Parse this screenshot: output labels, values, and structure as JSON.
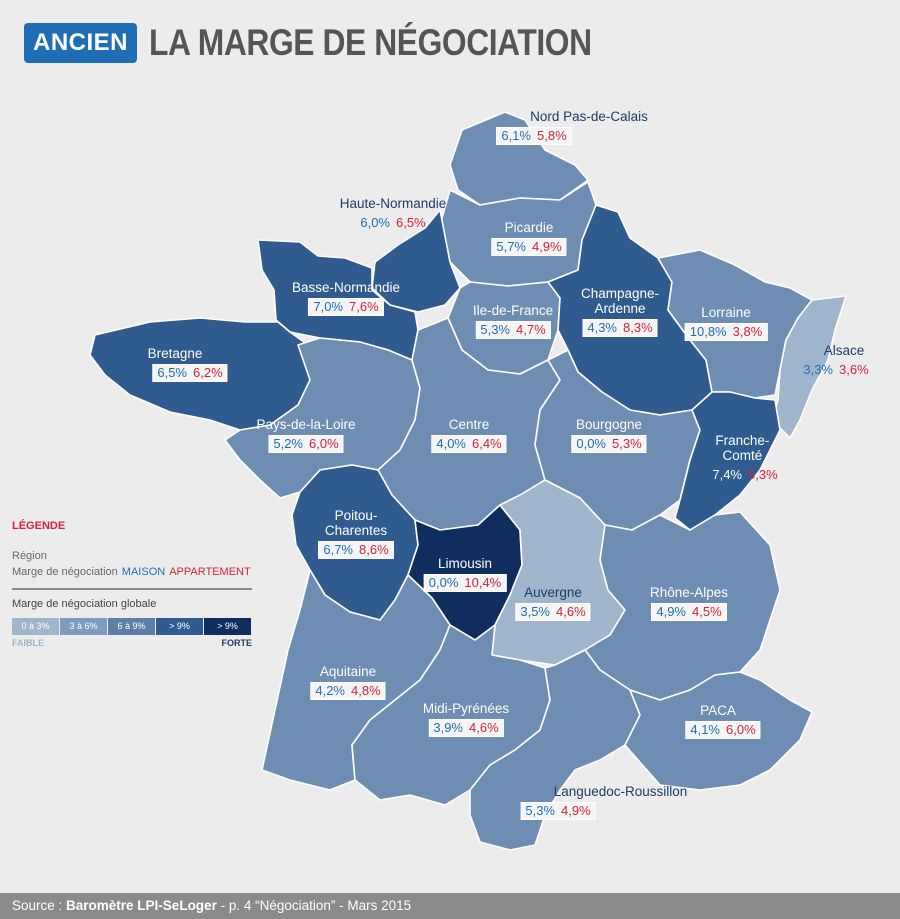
{
  "header": {
    "badge": "ANCIEN",
    "title": "LA MARGE DE NÉGOCIATION"
  },
  "colors": {
    "c1": "#9fb5cc",
    "c2": "#6d8db3",
    "c3": "#5c7fa8",
    "c4": "#2f5b8e",
    "c5": "#0f2e5e",
    "maison": "#1f6db5",
    "appartement": "#d2233c"
  },
  "regions": [
    {
      "name": "Nord Pas-de-Calais",
      "maison": "6,1%",
      "appart": "5,8%"
    },
    {
      "name": "Haute-Normandie",
      "maison": "6,0%",
      "appart": "6,5%"
    },
    {
      "name": "Picardie",
      "maison": "5,7%",
      "appart": "4,9%"
    },
    {
      "name": "Basse-Normandie",
      "maison": "7,0%",
      "appart": "7,6%"
    },
    {
      "name": "Ile-de-France",
      "maison": "5,3%",
      "appart": "4,7%"
    },
    {
      "name": "Champagne-Ardenne",
      "maison": "4,3%",
      "appart": "8,3%"
    },
    {
      "name": "Lorraine",
      "maison": "10,8%",
      "appart": "3,8%"
    },
    {
      "name": "Alsace",
      "maison": "3,3%",
      "appart": "3,6%"
    },
    {
      "name": "Bretagne",
      "maison": "6,5%",
      "appart": "6,2%"
    },
    {
      "name": "Pays-de-la-Loire",
      "maison": "5,2%",
      "appart": "6,0%"
    },
    {
      "name": "Centre",
      "maison": "4,0%",
      "appart": "6,4%"
    },
    {
      "name": "Bourgogne",
      "maison": "0,0%",
      "appart": "5,3%"
    },
    {
      "name": "Franche-Comté",
      "maison": "7,4%",
      "appart": "5,3%"
    },
    {
      "name": "Poitou-Charentes",
      "maison": "6,7%",
      "appart": "8,6%"
    },
    {
      "name": "Limousin",
      "maison": "0,0%",
      "appart": "10,4%"
    },
    {
      "name": "Auvergne",
      "maison": "3,5%",
      "appart": "4,6%"
    },
    {
      "name": "Rhône-Alpes",
      "maison": "4,9%",
      "appart": "4,5%"
    },
    {
      "name": "Aquitaine",
      "maison": "4,2%",
      "appart": "4,8%"
    },
    {
      "name": "Midi-Pyrénées",
      "maison": "3,9%",
      "appart": "4,6%"
    },
    {
      "name": "PACA",
      "maison": "4,1%",
      "appart": "6,0%"
    },
    {
      "name": "Languedoc-Roussillon",
      "maison": "5,3%",
      "appart": "4,9%"
    }
  ],
  "legend": {
    "title": "LÉGENDE",
    "line1": "Région",
    "line2": "Marge de négociation",
    "maison": "MAISON",
    "appartement": "APPARTEMENT",
    "global": "Marge de négociation globale",
    "scale": [
      "0 à 3%",
      "3 à 6%",
      "6 à 9%",
      "> 9%",
      "> 9%"
    ],
    "low": "FAIBLE",
    "high": "FORTE"
  },
  "footer": {
    "prefix": "Source : ",
    "source": "Baromètre LPI-SeLoger",
    "suffix": " - p. 4 “Négociation” - Mars 2015"
  }
}
